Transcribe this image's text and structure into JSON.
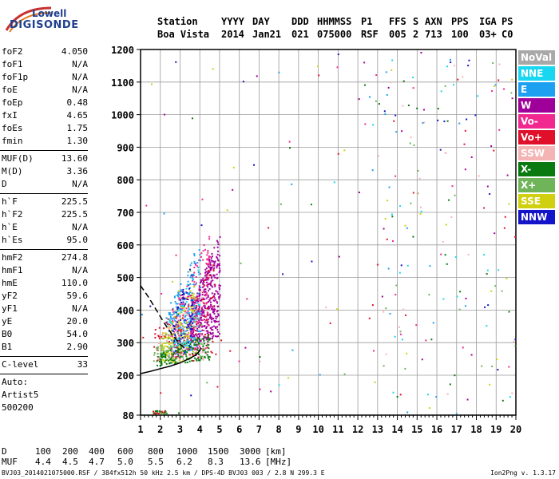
{
  "logo": {
    "line1": "Lowell",
    "line2": "DIGISONDE"
  },
  "header": {
    "labels": [
      "Station",
      "YYYY",
      "DAY",
      "DDD",
      "HHMMSS",
      "P1",
      "FFS",
      "S",
      "AXN",
      "PPS",
      "IGA",
      "PS"
    ],
    "values": [
      "Boa Vista",
      "2014",
      "Jan21",
      "021",
      "075000",
      "RSF",
      "005",
      "2",
      "713",
      "100",
      "03+",
      "C0"
    ]
  },
  "params_group1": [
    {
      "k": "foF2",
      "v": "4.050"
    },
    {
      "k": "foF1",
      "v": "N/A"
    },
    {
      "k": "foF1p",
      "v": "N/A"
    },
    {
      "k": "foE",
      "v": "N/A"
    },
    {
      "k": "foEp",
      "v": "0.48"
    },
    {
      "k": "fxI",
      "v": "4.65"
    },
    {
      "k": "foEs",
      "v": "1.75"
    },
    {
      "k": "fmin",
      "v": "1.30"
    }
  ],
  "params_group2": [
    {
      "k": "MUF(D)",
      "v": "13.60"
    },
    {
      "k": "M(D)",
      "v": "3.36"
    },
    {
      "k": "D",
      "v": "N/A"
    }
  ],
  "params_group3": [
    {
      "k": "h`F",
      "v": "225.5"
    },
    {
      "k": "h`F2",
      "v": "225.5"
    },
    {
      "k": "h`E",
      "v": "N/A"
    },
    {
      "k": "h`Es",
      "v": "95.0"
    }
  ],
  "params_group4": [
    {
      "k": "hmF2",
      "v": "274.8"
    },
    {
      "k": "hmF1",
      "v": "N/A"
    },
    {
      "k": "hmE",
      "v": "110.0"
    },
    {
      "k": "yF2",
      "v": "59.6"
    },
    {
      "k": "yF1",
      "v": "N/A"
    },
    {
      "k": "yE",
      "v": "20.0"
    },
    {
      "k": "B0",
      "v": "54.0"
    },
    {
      "k": "B1",
      "v": "2.90"
    }
  ],
  "clevel": {
    "k": "C-level",
    "v": "33"
  },
  "auto": [
    "Auto:",
    "Artist5",
    "500200"
  ],
  "legend": [
    {
      "label": "NoVal",
      "color": "#a8a8a8"
    },
    {
      "label": "NNE",
      "color": "#19d7f0"
    },
    {
      "label": "E",
      "color": "#1ea0f0"
    },
    {
      "label": "W",
      "color": "#a0009a"
    },
    {
      "label": "Vo-",
      "color": "#f02890"
    },
    {
      "label": "Vo+",
      "color": "#e0102a"
    },
    {
      "label": "SSW",
      "color": "#f5b4b4"
    },
    {
      "label": "X-",
      "color": "#0a7a10"
    },
    {
      "label": "X+",
      "color": "#70b45a"
    },
    {
      "label": "SSE",
      "color": "#d0d010"
    },
    {
      "label": "NNW",
      "color": "#1414c8"
    }
  ],
  "muf_table": {
    "d_label": "D",
    "d_values": [
      "100",
      "200",
      "400",
      "600",
      "800",
      "1000",
      "1500",
      "3000"
    ],
    "d_unit": "[km]",
    "muf_label": "MUF",
    "muf_values": [
      "4.4",
      "4.5",
      "4.7",
      "5.0",
      "5.5",
      "6.2",
      "8.3",
      "13.6"
    ],
    "muf_unit": "[MHz]"
  },
  "footer": {
    "left": "BVJ03_2014021075000.RSF / 384fx512h 50 kHz 2.5 km / DPS-4D BVJ03 003 / 2.8 N 299.3 E",
    "right": "Ion2Png v. 1.3.17"
  },
  "chart_data": {
    "type": "scatter",
    "x_ticks": [
      "1",
      "2",
      "3",
      "4",
      "5",
      "6",
      "7",
      "8",
      "9",
      "10",
      "11",
      "12",
      "13",
      "14",
      "15",
      "16",
      "17",
      "18",
      "19",
      "20"
    ],
    "y_ticks": [
      "80",
      "200",
      "300",
      "400",
      "500",
      "600",
      "700",
      "800",
      "900",
      "1000",
      "1100",
      "1200"
    ],
    "xlim": [
      1,
      20
    ],
    "ylim": [
      80,
      1200
    ],
    "grid": true,
    "trace_curve": {
      "x": [
        1.0,
        1.5,
        2.0,
        2.5,
        3.0,
        3.5,
        3.8,
        4.0,
        4.05
      ],
      "y": [
        205,
        212,
        220,
        228,
        238,
        252,
        262,
        275,
        285
      ]
    },
    "profile_curve": {
      "x": [
        1.0,
        1.4,
        1.8,
        2.2,
        2.6,
        3.0,
        3.3
      ],
      "y": [
        475,
        440,
        400,
        360,
        325,
        295,
        280
      ]
    },
    "echo_clusters": [
      {
        "color": "W",
        "x": [
          3.5,
          5.0
        ],
        "y": [
          300,
          640
        ],
        "n": 420
      },
      {
        "color": "Vo-",
        "x": [
          2.5,
          4.5
        ],
        "y": [
          250,
          650
        ],
        "n": 250
      },
      {
        "color": "E",
        "x": [
          2.2,
          4.0
        ],
        "y": [
          260,
          620
        ],
        "n": 180
      },
      {
        "color": "SSE",
        "x": [
          2.0,
          3.8
        ],
        "y": [
          230,
          500
        ],
        "n": 160
      },
      {
        "color": "X-",
        "x": [
          1.8,
          4.5
        ],
        "y": [
          230,
          330
        ],
        "n": 160
      },
      {
        "color": "NNW",
        "x": [
          2.6,
          3.6
        ],
        "y": [
          260,
          560
        ],
        "n": 80
      },
      {
        "color": "Vo+",
        "x": [
          1.6,
          4.8
        ],
        "y": [
          230,
          560
        ],
        "n": 90
      },
      {
        "color": "SSW",
        "x": [
          1.8,
          4.2
        ],
        "y": [
          230,
          480
        ],
        "n": 60
      },
      {
        "color": "X+",
        "x": [
          1.6,
          4.2
        ],
        "y": [
          240,
          400
        ],
        "n": 60
      },
      {
        "color": "NNE",
        "x": [
          2.4,
          4.0
        ],
        "y": [
          280,
          560
        ],
        "n": 60
      }
    ],
    "es_layer": {
      "x": [
        1.6,
        2.3
      ],
      "y": [
        85,
        95
      ]
    }
  }
}
